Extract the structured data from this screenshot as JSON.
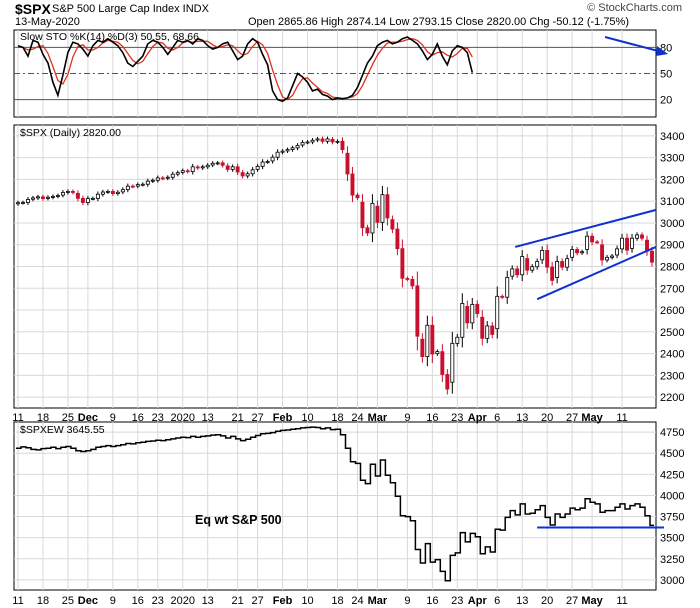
{
  "header": {
    "symbol": "$SPX",
    "name": "S&P 500 Large Cap Index INDX",
    "date": "13-May-2020",
    "ohlc_text": "Open 2865.86 High 2874.14 Low 2793.15 Close 2820.00 Chg -50.12 (-1.75%)",
    "brand": "© StockCharts.com"
  },
  "colors": {
    "up": "#000000",
    "down": "#c8102e",
    "trend": "#1030d0",
    "k_line": "#000000",
    "d_line": "#e03020",
    "grid": "#d8d8d8"
  },
  "chart_data": [
    {
      "type": "line",
      "title": "Slow STO %K(14) %D(3) 50.55, 68.66",
      "y_ticks": [
        "80",
        "50",
        "20"
      ],
      "ylim": [
        0,
        100
      ],
      "ref_lines": [
        80,
        50,
        20
      ],
      "series": [
        {
          "name": "%K(14)",
          "values": [
            82,
            80,
            70,
            88,
            86,
            72,
            62,
            40,
            25,
            48,
            74,
            86,
            84,
            78,
            70,
            82,
            88,
            86,
            90,
            86,
            82,
            74,
            62,
            58,
            64,
            70,
            84,
            88,
            86,
            80,
            72,
            80,
            88,
            86,
            88,
            84,
            90,
            88,
            82,
            78,
            80,
            84,
            86,
            76,
            66,
            70,
            84,
            90,
            86,
            72,
            60,
            30,
            20,
            18,
            22,
            36,
            50,
            46,
            40,
            30,
            32,
            26,
            24,
            20,
            22,
            21,
            22,
            25,
            34,
            48,
            62,
            70,
            82,
            86,
            88,
            84,
            86,
            90,
            92,
            88,
            84,
            76,
            66,
            72,
            84,
            70,
            60,
            76,
            82,
            80,
            74,
            51
          ]
        },
        {
          "name": "%D(3)",
          "values": [
            80,
            80,
            77,
            78,
            81,
            82,
            73,
            58,
            42,
            38,
            49,
            69,
            81,
            83,
            77,
            77,
            80,
            85,
            88,
            87,
            86,
            81,
            73,
            65,
            61,
            64,
            73,
            81,
            86,
            85,
            79,
            77,
            80,
            85,
            87,
            86,
            87,
            87,
            87,
            83,
            80,
            81,
            83,
            82,
            76,
            71,
            73,
            81,
            87,
            83,
            73,
            54,
            37,
            23,
            20,
            25,
            36,
            44,
            45,
            39,
            34,
            29,
            27,
            23,
            22,
            21,
            22,
            23,
            27,
            36,
            48,
            60,
            71,
            79,
            85,
            86,
            86,
            87,
            89,
            90,
            88,
            83,
            75,
            71,
            74,
            75,
            71,
            69,
            73,
            79,
            79,
            69
          ]
        }
      ]
    },
    {
      "type": "candlestick",
      "title": "$SPX (Daily) 2820.00",
      "y_ticks": [
        "3400",
        "3300",
        "3200",
        "3100",
        "3000",
        "2900",
        "2800",
        "2700",
        "2600",
        "2500",
        "2400",
        "2300",
        "2200"
      ],
      "ylim": [
        2150,
        3450
      ],
      "x_labels": [
        "11",
        "18",
        "25",
        "Dec",
        "9",
        "16",
        "23",
        "2020",
        "13",
        "21",
        "27",
        "Feb",
        "10",
        "18",
        "24",
        "Mar",
        "9",
        "16",
        "23",
        "Apr",
        "6",
        "13",
        "20",
        "27",
        "May",
        "11"
      ],
      "close": [
        3093,
        3094,
        3108,
        3115,
        3120,
        3112,
        3118,
        3122,
        3126,
        3140,
        3145,
        3140,
        3113,
        3094,
        3112,
        3113,
        3132,
        3142,
        3145,
        3135,
        3141,
        3153,
        3169,
        3168,
        3176,
        3178,
        3192,
        3196,
        3207,
        3205,
        3210,
        3224,
        3231,
        3240,
        3236,
        3258,
        3253,
        3258,
        3265,
        3274,
        3276,
        3265,
        3246,
        3258,
        3234,
        3216,
        3226,
        3244,
        3260,
        3280,
        3282,
        3302,
        3325,
        3330,
        3337,
        3345,
        3356,
        3370,
        3372,
        3380,
        3386,
        3375,
        3386,
        3372,
        3375,
        3337,
        3225,
        3128,
        3116,
        2978,
        2954,
        3090,
        3003,
        3130,
        3023,
        2972,
        2882,
        2746,
        2741,
        2711,
        2480,
        2386,
        2530,
        2398,
        2409,
        2304,
        2237,
        2447,
        2475,
        2630,
        2541,
        2626,
        2584,
        2470,
        2527,
        2488,
        2663,
        2659,
        2750,
        2789,
        2762,
        2846,
        2783,
        2799,
        2823,
        2874,
        2797,
        2736,
        2823,
        2797,
        2836,
        2878,
        2863,
        2868,
        2939,
        2913,
        2912,
        2830,
        2842,
        2848,
        2881,
        2930,
        2875,
        2930,
        2945,
        2930,
        2870,
        2820
      ]
    },
    {
      "type": "line",
      "title": "$SPXEW 3645.55",
      "y_ticks": [
        "4750",
        "4500",
        "4250",
        "4000",
        "3750",
        "3500",
        "3250",
        "3000"
      ],
      "ylim": [
        2880,
        4870
      ],
      "values": [
        4560,
        4575,
        4565,
        4545,
        4540,
        4555,
        4560,
        4570,
        4555,
        4570,
        4580,
        4560,
        4530,
        4520,
        4530,
        4545,
        4570,
        4580,
        4590,
        4580,
        4590,
        4600,
        4615,
        4610,
        4625,
        4630,
        4640,
        4645,
        4655,
        4650,
        4660,
        4670,
        4680,
        4690,
        4685,
        4700,
        4690,
        4700,
        4705,
        4715,
        4720,
        4705,
        4680,
        4700,
        4670,
        4650,
        4665,
        4690,
        4710,
        4730,
        4735,
        4745,
        4760,
        4770,
        4775,
        4785,
        4790,
        4800,
        4805,
        4810,
        4805,
        4790,
        4800,
        4780,
        4785,
        4720,
        4560,
        4400,
        4380,
        4180,
        4140,
        4370,
        4230,
        4420,
        4240,
        4150,
        3990,
        3760,
        3750,
        3700,
        3360,
        3200,
        3430,
        3210,
        3240,
        3100,
        2990,
        3290,
        3320,
        3560,
        3450,
        3550,
        3510,
        3310,
        3390,
        3330,
        3600,
        3590,
        3740,
        3820,
        3770,
        3900,
        3780,
        3790,
        3830,
        3880,
        3740,
        3650,
        3780,
        3740,
        3780,
        3850,
        3830,
        3850,
        3960,
        3920,
        3900,
        3800,
        3820,
        3820,
        3860,
        3900,
        3840,
        3880,
        3900,
        3860,
        3760,
        3645.55
      ],
      "annotation": "Eq wt S&P 500",
      "x_labels": [
        "11",
        "18",
        "25",
        "Dec",
        "9",
        "16",
        "23",
        "2020",
        "13",
        "21",
        "27",
        "Feb",
        "10",
        "18",
        "24",
        "Mar",
        "9",
        "16",
        "23",
        "Apr",
        "6",
        "13",
        "20",
        "27",
        "May",
        "11"
      ]
    }
  ]
}
